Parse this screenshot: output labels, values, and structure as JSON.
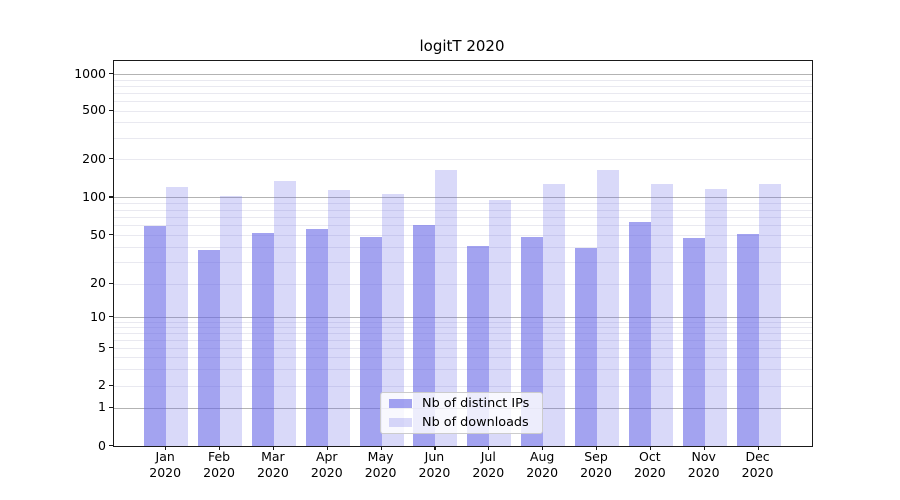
{
  "figure": {
    "background": "#ffffff"
  },
  "chart_data": {
    "type": "bar",
    "title": "logitT 2020",
    "categories": [
      "Jan",
      "Feb",
      "Mar",
      "Apr",
      "May",
      "Jun",
      "Jul",
      "Aug",
      "Sep",
      "Oct",
      "Nov",
      "Dec"
    ],
    "x_tick_second_line": "2020",
    "series": [
      {
        "name": "Nb of distinct IPs",
        "values": [
          59,
          38,
          52,
          56,
          48,
          60,
          41,
          48,
          39,
          63,
          47,
          51
        ]
      },
      {
        "name": "Nb of downloads",
        "values": [
          121,
          102,
          136,
          115,
          106,
          165,
          95,
          127,
          166,
          128,
          117,
          127
        ]
      }
    ],
    "xlabel": "",
    "ylabel": "",
    "yscale": "log-like (nonlinear near zero, linear 0-1 segment)",
    "yticks": [
      0,
      1,
      2,
      5,
      10,
      20,
      50,
      100,
      200,
      500,
      1000
    ],
    "ylim": [
      0,
      1300
    ],
    "grid": "horizontal: dark lines at decades (1,10,100,1000), light minor lines elsewhere",
    "legend": {
      "position": "lower center (inside axes)",
      "entries": [
        "Nb of distinct IPs",
        "Nb of downloads"
      ]
    },
    "colors": {
      "bar_base": "#6666e6",
      "series1_fill": "rgba(102,102,230,0.60)",
      "series2_fill": "rgba(102,102,230,0.25)",
      "major_grid": "#b3b3b3",
      "minor_grid": "#e9e9f0",
      "axis_spine": "#1a1a1a",
      "text": "#000000"
    }
  }
}
